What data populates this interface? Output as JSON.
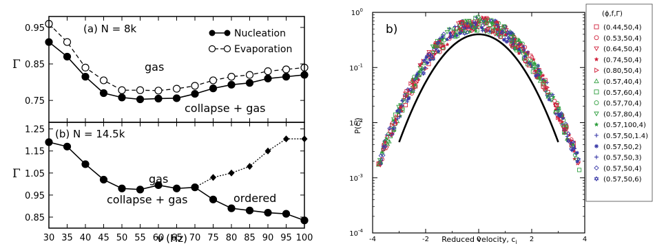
{
  "chart_data": [
    {
      "type": "line",
      "panel_label": "(a) N = 8k",
      "ylabel": "Γ",
      "xlabel": "",
      "xlim": [
        30,
        100
      ],
      "ylim": [
        0.69,
        0.98
      ],
      "xticks": [
        "30",
        "35",
        "40",
        "45",
        "50",
        "55",
        "60",
        "65",
        "70",
        "75",
        "80",
        "85",
        "90",
        "95",
        "100"
      ],
      "yticks": [
        {
          "value": 0.75,
          "label": "0.75"
        },
        {
          "value": 0.85,
          "label": "0.85"
        },
        {
          "value": 0.95,
          "label": "0.95"
        }
      ],
      "x": [
        30,
        35,
        40,
        45,
        50,
        55,
        60,
        65,
        70,
        75,
        80,
        85,
        90,
        95,
        100
      ],
      "series": [
        {
          "name": "Nucleation",
          "marker": "filled-circle",
          "line": "solid",
          "values": [
            0.91,
            0.87,
            0.815,
            0.77,
            0.758,
            0.753,
            0.755,
            0.756,
            0.768,
            0.783,
            0.793,
            0.798,
            0.81,
            0.815,
            0.82
          ]
        },
        {
          "name": "Evaporation",
          "marker": "open-circle",
          "line": "dashed",
          "values": [
            0.96,
            0.91,
            0.84,
            0.805,
            0.778,
            0.778,
            0.777,
            0.782,
            0.79,
            0.805,
            0.815,
            0.82,
            0.83,
            0.835,
            0.84
          ]
        }
      ],
      "legend": "top-right",
      "annotations": [
        "gas",
        "collapse + gas"
      ]
    },
    {
      "type": "line",
      "panel_label": "(b) N = 14.5k",
      "ylabel": "Γ",
      "xlabel": "ν (Hz)",
      "xlim": [
        30,
        100
      ],
      "ylim": [
        0.8,
        1.28
      ],
      "xticks": [
        "30",
        "35",
        "40",
        "45",
        "50",
        "55",
        "60",
        "65",
        "70",
        "75",
        "80",
        "85",
        "90",
        "95",
        "100"
      ],
      "yticks": [
        {
          "value": 0.85,
          "label": "0.85"
        },
        {
          "value": 0.95,
          "label": "0.95"
        },
        {
          "value": 1.05,
          "label": "1.05"
        },
        {
          "value": 1.15,
          "label": "1.15"
        },
        {
          "value": 1.25,
          "label": "1.25"
        }
      ],
      "series": [
        {
          "marker": "filled-circle",
          "line": "solid",
          "x": [
            30,
            35,
            40,
            45,
            50,
            55,
            60,
            65,
            70,
            75,
            80,
            85,
            90,
            95,
            100
          ],
          "values": [
            1.19,
            1.17,
            1.09,
            1.02,
            0.98,
            0.975,
            0.995,
            0.98,
            0.985,
            0.93,
            0.89,
            0.88,
            0.87,
            0.865,
            0.835
          ]
        },
        {
          "marker": "filled-diamond",
          "line": "dotted",
          "x": [
            70,
            75,
            80,
            85,
            90,
            95,
            100
          ],
          "values": [
            0.985,
            1.03,
            1.05,
            1.08,
            1.15,
            1.205,
            1.205
          ]
        }
      ],
      "annotations": [
        "gas",
        "collapse + gas",
        "ordered"
      ]
    },
    {
      "type": "scatter",
      "panel_label": "b)",
      "xlabel": "Reduced velocity, c",
      "xlabel_sub": "i",
      "ylabel": "P(c",
      "ylabel_sub": "i",
      "ylabel_close": ")",
      "xlim": [
        -4,
        4
      ],
      "ylim_log10": [
        -4,
        0
      ],
      "log_y": true,
      "xticks": [
        "-4",
        "-2",
        "0",
        "2",
        "4"
      ],
      "yticks": [
        {
          "mant": "10",
          "exp": "-4"
        },
        {
          "mant": "10",
          "exp": "-3"
        },
        {
          "mant": "10",
          "exp": "-2"
        },
        {
          "mant": "10",
          "exp": "-1"
        },
        {
          "mant": "10",
          "exp": "0"
        }
      ],
      "legend_title": "(ϕ,f,Γ)",
      "legend": "right",
      "reference_curve": "gaussian",
      "series": [
        {
          "name": "(0.44,50,4)",
          "marker": "square",
          "color": "#d0203a"
        },
        {
          "name": "(0.53,50,4)",
          "marker": "circle",
          "color": "#d0203a"
        },
        {
          "name": "(0.64,50,4)",
          "marker": "triangle-down",
          "color": "#d0203a"
        },
        {
          "name": "(0.74,50,4)",
          "marker": "star",
          "color": "#d0203a"
        },
        {
          "name": "(0.80,50,4)",
          "marker": "triangle-right",
          "color": "#d0203a"
        },
        {
          "name": "(0.57,40,4)",
          "marker": "triangle-up",
          "color": "#2e9e3e"
        },
        {
          "name": "(0.57,60,4)",
          "marker": "square",
          "color": "#2e9e3e"
        },
        {
          "name": "(0.57,70,4)",
          "marker": "circle",
          "color": "#2e9e3e"
        },
        {
          "name": "(0.57,80,4)",
          "marker": "triangle-down",
          "color": "#2e9e3e"
        },
        {
          "name": "(0.57,100,4)",
          "marker": "star",
          "color": "#2e9e3e"
        },
        {
          "name": "(0.57,50,1.4)",
          "marker": "plus",
          "color": "#3a3aa8"
        },
        {
          "name": "(0.57,50,2)",
          "marker": "asterisk",
          "color": "#3a3aa8"
        },
        {
          "name": "(0.57,50,3)",
          "marker": "plus",
          "color": "#3a3aa8"
        },
        {
          "name": "(0.57,50,4)",
          "marker": "diamond",
          "color": "#3a3aa8"
        },
        {
          "name": "(0.57,50,6)",
          "marker": "hexagram",
          "color": "#3a3aa8"
        }
      ]
    }
  ]
}
